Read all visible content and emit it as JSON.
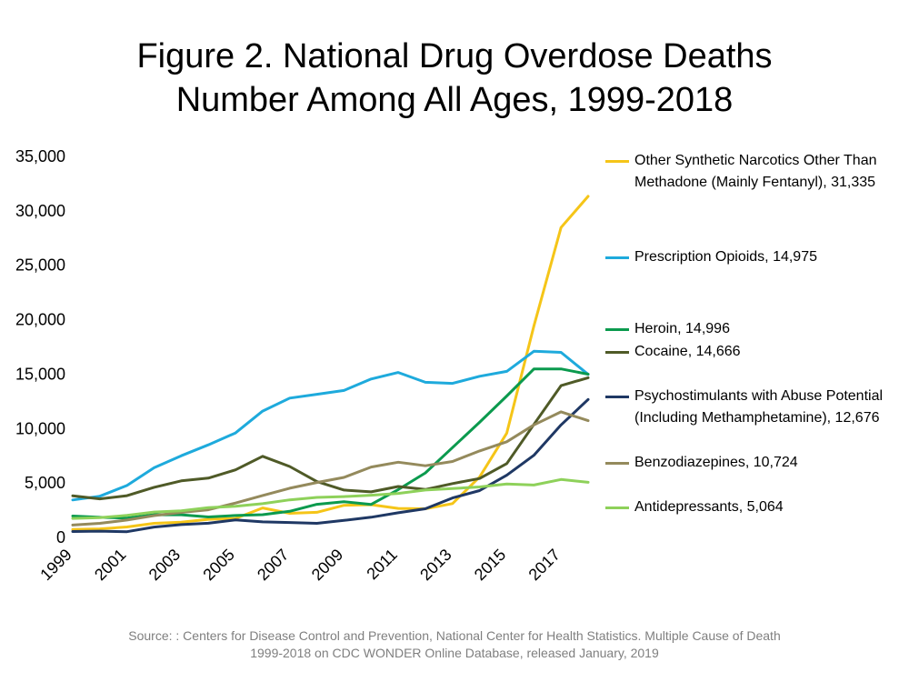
{
  "title": {
    "line1": "Figure 2. National Drug Overdose Deaths",
    "line2": "Number Among All Ages, 1999-2018"
  },
  "source": {
    "line1": "Source: : Centers for Disease Control and Prevention, National Center for Health Statistics. Multiple Cause of Death",
    "line2": "1999-2018 on CDC WONDER Online Database, released January, 2019"
  },
  "chart_data": {
    "type": "line",
    "x": [
      1999,
      2000,
      2001,
      2002,
      2003,
      2004,
      2005,
      2006,
      2007,
      2008,
      2009,
      2010,
      2011,
      2012,
      2013,
      2014,
      2015,
      2016,
      2017,
      2018
    ],
    "x_tick_labels": [
      "1999",
      "2001",
      "2003",
      "2005",
      "2007",
      "2009",
      "2011",
      "2013",
      "2015",
      "2017"
    ],
    "y_tick_labels": [
      "0",
      "5,000",
      "10,000",
      "15,000",
      "20,000",
      "25,000",
      "30,000",
      "35,000"
    ],
    "ylim": [
      0,
      35000
    ],
    "grid": false,
    "legend_position": "right",
    "series": [
      {
        "name": "Other Synthetic Narcotics Other Than Methadone (Mainly Fentanyl), 31,335",
        "color": "#f5c518",
        "values": [
          730,
          782,
          957,
          1295,
          1400,
          1664,
          1742,
          2707,
          2213,
          2306,
          2946,
          3007,
          2666,
          2628,
          3105,
          5544,
          9580,
          19413,
          28466,
          31335
        ]
      },
      {
        "name": "Prescription Opioids, 14,975",
        "color": "#1eaadc",
        "values": [
          3442,
          3785,
          4770,
          6400,
          7500,
          8500,
          9600,
          11600,
          12800,
          13150,
          13500,
          14550,
          15150,
          14250,
          14150,
          14800,
          15250,
          17100,
          17000,
          14975
        ]
      },
      {
        "name": "Heroin, 14,996",
        "color": "#0b9a4e",
        "values": [
          1960,
          1842,
          1779,
          2089,
          2080,
          1878,
          2009,
          2088,
          2399,
          3041,
          3278,
          3036,
          4397,
          5925,
          8257,
          10574,
          12989,
          15469,
          15482,
          14996
        ]
      },
      {
        "name": "Cocaine, 14,666",
        "color": "#4f5a27",
        "values": [
          3822,
          3544,
          3833,
          4599,
          5199,
          5443,
          6208,
          7448,
          6512,
          5129,
          4350,
          4183,
          4681,
          4404,
          4944,
          5415,
          6784,
          10375,
          13942,
          14666
        ]
      },
      {
        "name": "Psychostimulants with Abuse Potential (Including Methamphetamine), 12,676",
        "color": "#1f3864",
        "values": [
          547,
          578,
          525,
          952,
          1179,
          1306,
          1616,
          1430,
          1371,
          1294,
          1563,
          1854,
          2266,
          2635,
          3627,
          4298,
          5716,
          7542,
          10333,
          12676
        ]
      },
      {
        "name": "Benzodiazepines, 10,724",
        "color": "#948a5c",
        "values": [
          1135,
          1298,
          1594,
          2007,
          2301,
          2536,
          3158,
          3849,
          4516,
          5043,
          5512,
          6467,
          6905,
          6580,
          6973,
          7945,
          8791,
          10337,
          11537,
          10724
        ]
      },
      {
        "name": "Antidepressants, 5,064",
        "color": "#8ed15a",
        "values": [
          1749,
          1810,
          2025,
          2330,
          2451,
          2732,
          2859,
          3097,
          3450,
          3675,
          3748,
          3876,
          4047,
          4349,
          4488,
          4634,
          4910,
          4813,
          5325,
          5064
        ]
      }
    ]
  }
}
